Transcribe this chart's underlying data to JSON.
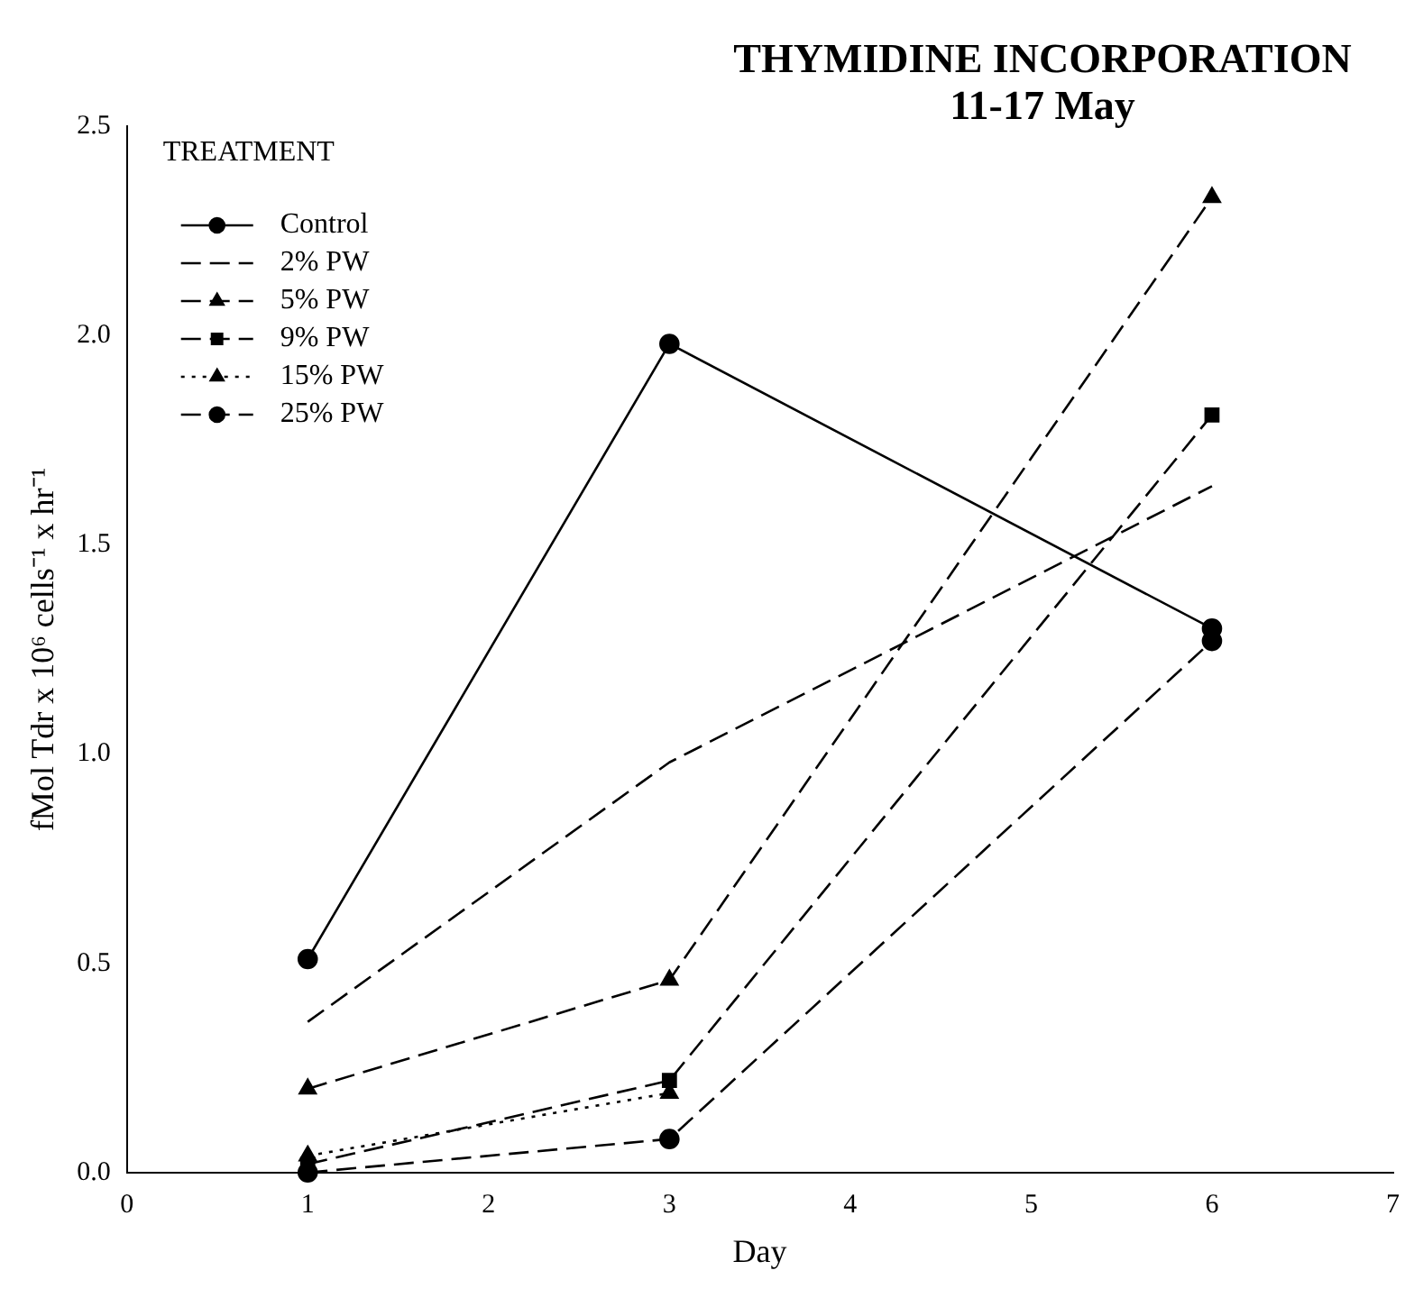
{
  "chart_data": {
    "type": "line",
    "title": "THYMIDINE INCORPORATION",
    "subtitle": "11-17 May",
    "xlabel": "Day",
    "ylabel": "fMol Tdr x 10⁶ cells⁻¹ x hr⁻¹",
    "legend_title": "TREATMENT",
    "legend": "top left",
    "grid": false,
    "x": [
      1,
      3,
      6
    ],
    "xlim": [
      0,
      7
    ],
    "xticks": [
      0,
      1,
      2,
      3,
      4,
      5,
      6,
      7
    ],
    "ylim": [
      0,
      2.5
    ],
    "yticks": [
      {
        "value": 0,
        "label": "0.0"
      },
      {
        "value": 0.5,
        "label": "0.5"
      },
      {
        "value": 1,
        "label": "1.0"
      },
      {
        "value": 1.5,
        "label": "1.5"
      },
      {
        "value": 2,
        "label": "2.0"
      },
      {
        "value": 2.5,
        "label": "2.5"
      }
    ],
    "series": [
      {
        "name": "Control",
        "color": "#000000",
        "values": [
          0.51,
          1.98,
          1.3
        ],
        "marker": "circle",
        "line_style": "solid"
      },
      {
        "name": "2% PW",
        "color": "#000000",
        "values": [
          0.36,
          0.98,
          1.64
        ],
        "marker": "none",
        "line_style": "dashed"
      },
      {
        "name": "5% PW",
        "color": "#000000",
        "values": [
          0.2,
          0.46,
          2.33
        ],
        "marker": "triangle",
        "line_style": "dashed"
      },
      {
        "name": "9% PW",
        "color": "#000000",
        "values": [
          0.02,
          0.22,
          1.81
        ],
        "marker": "square",
        "line_style": "dashed"
      },
      {
        "name": "15% PW",
        "color": "#000000",
        "values": [
          0.04,
          0.19,
          null
        ],
        "marker": "triangle",
        "line_style": "dotted"
      },
      {
        "name": "25% PW",
        "color": "#000000",
        "values": [
          0.0,
          0.08,
          1.27
        ],
        "marker": "circle",
        "line_style": "dashed"
      }
    ]
  }
}
